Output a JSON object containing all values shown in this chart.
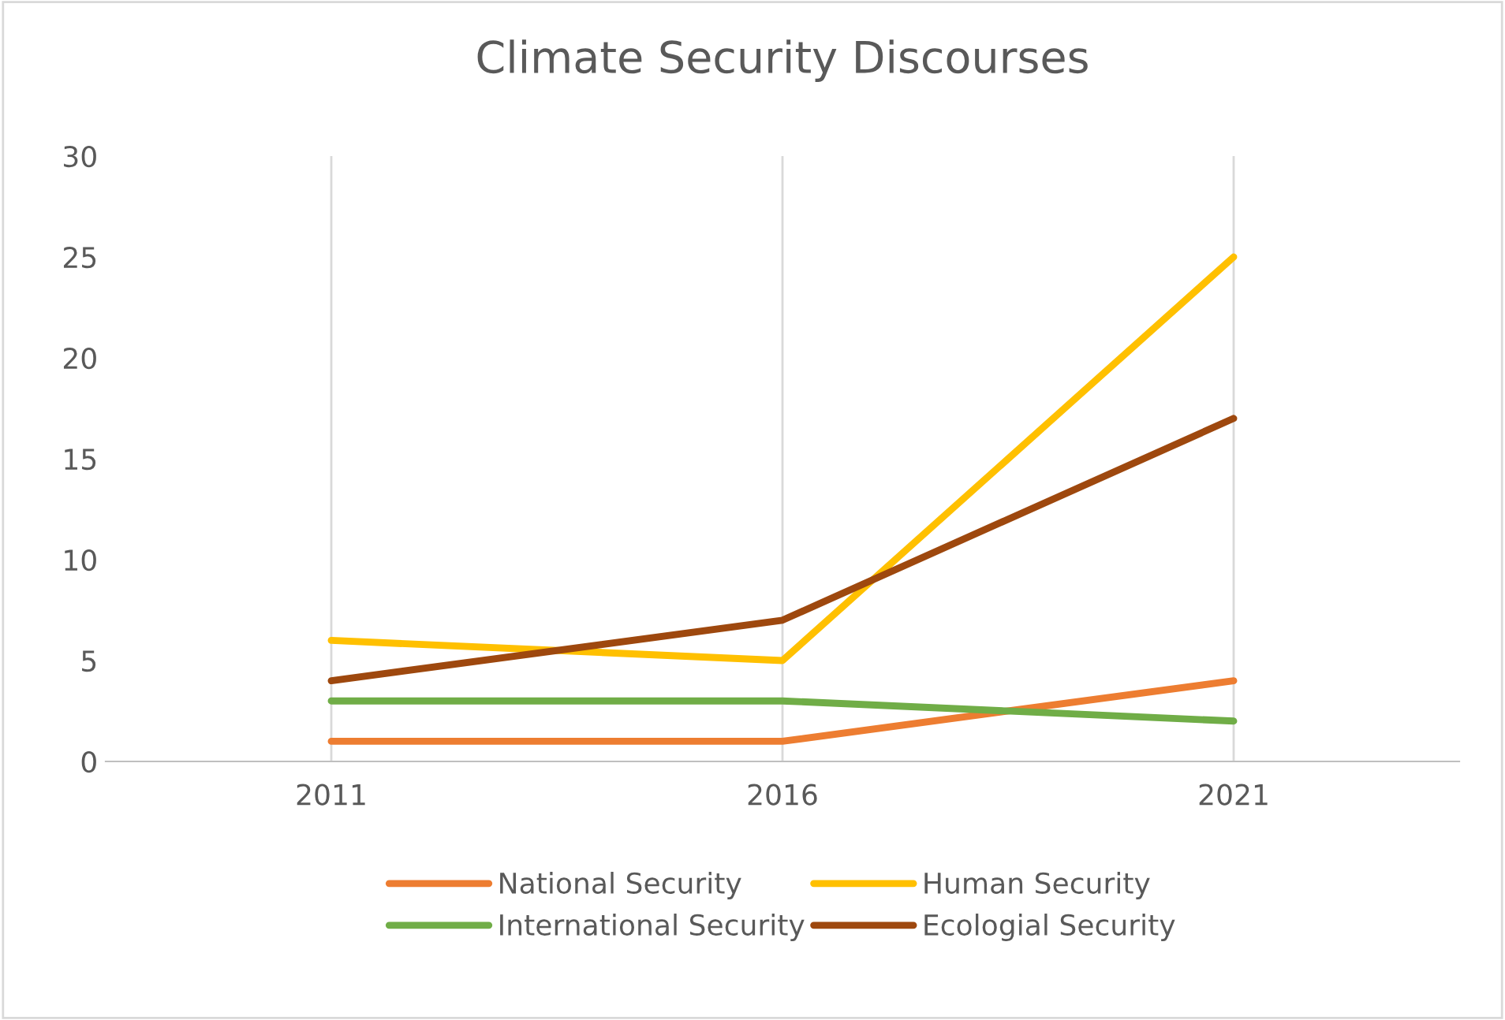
{
  "chart_data": {
    "type": "line",
    "title": "Climate Security Discourses",
    "categories": [
      "2011",
      "2016",
      "2021"
    ],
    "series": [
      {
        "name": "National Security",
        "color": "#ed7d31",
        "values": [
          1,
          1,
          4
        ]
      },
      {
        "name": "Human Security",
        "color": "#ffc000",
        "values": [
          6,
          5,
          25
        ]
      },
      {
        "name": "International Security",
        "color": "#70ad47",
        "values": [
          3,
          3,
          2
        ]
      },
      {
        "name": "Ecologial Security",
        "color": "#9e480e",
        "values": [
          4,
          7,
          17
        ]
      }
    ],
    "ylim": [
      0,
      30
    ],
    "yticks": [
      0,
      5,
      10,
      15,
      20,
      25,
      30
    ],
    "grid": "x",
    "legend": "bottom",
    "marker": "none",
    "line_style": "solid"
  }
}
